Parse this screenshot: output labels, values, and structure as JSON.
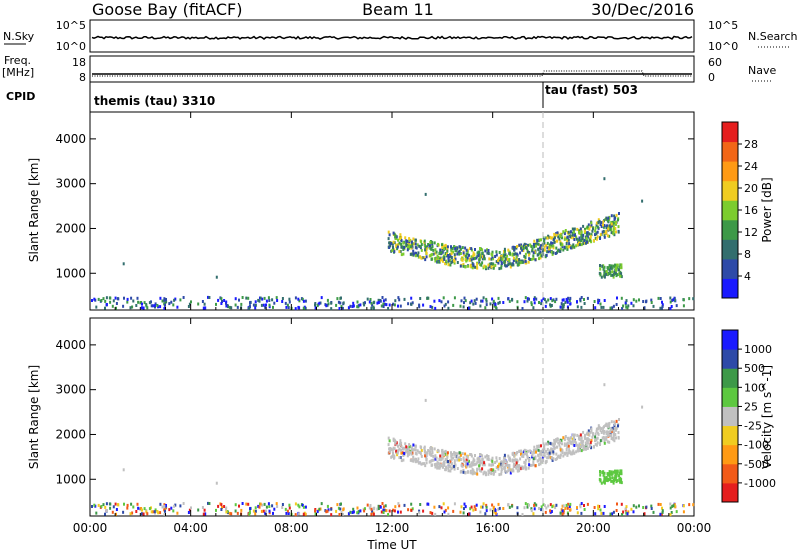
{
  "header": {
    "title_left": "Goose Bay (fitACF)",
    "title_center": "Beam 11",
    "title_right": "30/Dec/2016"
  },
  "panel_labels": {
    "nsky": "N.Sky",
    "nsearch": "N.Search",
    "freq": "Freq.",
    "mhz": "[MHz]",
    "cpid": "CPID",
    "nave": "Nave"
  },
  "top_ticks": {
    "nsky_top": "10^5",
    "nsky_bottom": "10^0",
    "nsearch_top": "10^5",
    "nsearch_bottom": "10^0",
    "freq_top": "18",
    "freq_bottom": "8",
    "nave_top": "60",
    "nave_bottom": "0"
  },
  "cpid": {
    "left": "themis (tau) 3310",
    "right": "tau (fast) 503",
    "switch_hour": 18
  },
  "colors": {
    "power_scale": [
      "#1a1aff",
      "#2e4aa8",
      "#336e6e",
      "#3d9948",
      "#7ccc2e",
      "#f0cc20",
      "#ff9a14",
      "#f26617",
      "#e51e1e"
    ],
    "velocity_scale": [
      "#e51e1e",
      "#f25a18",
      "#ff9a14",
      "#f0cc20",
      "#c0c0c0",
      "#5dc840",
      "#3d9948",
      "#2e4aa8",
      "#1a1aff"
    ]
  },
  "chart_data": [
    {
      "type": "heatmap",
      "name": "power",
      "xlabel": "",
      "ylabel": "Slant Range [km]",
      "xlim": [
        0,
        24
      ],
      "ylim": [
        180,
        4600
      ],
      "yticks": [
        "1000",
        "2000",
        "3000",
        "4000"
      ],
      "colorbar_label": "Power [dB]",
      "colorbar_ticks": [
        "4",
        "8",
        "12",
        "16",
        "20",
        "24",
        "28"
      ],
      "colorbar_range": [
        0,
        30
      ]
    },
    {
      "type": "heatmap",
      "name": "velocity",
      "xlabel": "Time UT",
      "ylabel": "Slant Range [km]",
      "xlim": [
        0,
        24
      ],
      "ylim": [
        180,
        4600
      ],
      "xticks": [
        "00:00",
        "04:00",
        "08:00",
        "12:00",
        "16:00",
        "20:00",
        "00:00"
      ],
      "yticks": [
        "1000",
        "2000",
        "3000",
        "4000"
      ],
      "colorbar_label": "Velocity [m s^-1]",
      "colorbar_ticks": [
        "1000",
        "500",
        "100",
        "25",
        "-25",
        "-100",
        "-500",
        "-1000"
      ]
    }
  ]
}
